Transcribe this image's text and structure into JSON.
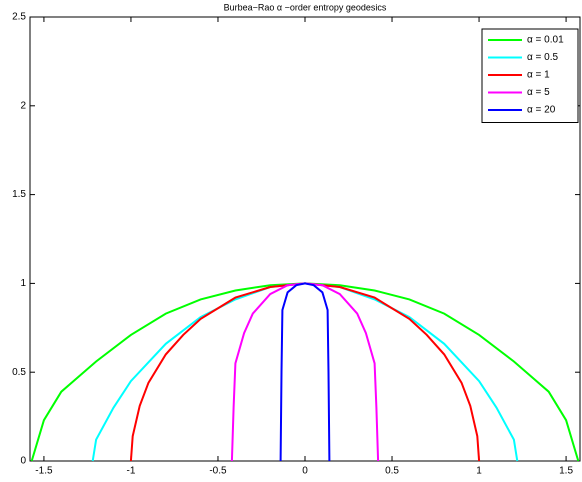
{
  "chart_data": {
    "type": "line",
    "title": "Burbea−Rao α −order entropy geodesics",
    "xlim": [
      -1.58,
      1.58
    ],
    "xticks": [
      -1.5,
      -1,
      -0.5,
      0,
      0.5,
      1,
      1.5
    ],
    "ylim": [
      0,
      2.5
    ],
    "yticks": [
      0,
      0.5,
      1,
      1.5,
      2,
      2.5
    ],
    "grid": false,
    "legend": "top-right",
    "series": [
      {
        "name": "α = 0.01",
        "color": "#00ff00",
        "x": [
          -1.57,
          -1.5,
          -1.4,
          -1.2,
          -1.0,
          -0.8,
          -0.6,
          -0.4,
          -0.2,
          0,
          0.2,
          0.4,
          0.6,
          0.8,
          1.0,
          1.2,
          1.4,
          1.5,
          1.57
        ],
        "values": [
          0,
          0.23,
          0.39,
          0.56,
          0.71,
          0.83,
          0.91,
          0.96,
          0.99,
          1,
          0.99,
          0.96,
          0.91,
          0.83,
          0.71,
          0.56,
          0.39,
          0.23,
          0
        ]
      },
      {
        "name": "α = 0.5",
        "color": "#00ffff",
        "x": [
          -1.22,
          -1.2,
          -1.1,
          -1.0,
          -0.8,
          -0.6,
          -0.4,
          -0.2,
          0,
          0.2,
          0.4,
          0.6,
          0.8,
          1.0,
          1.1,
          1.2,
          1.22
        ],
        "values": [
          0,
          0.12,
          0.3,
          0.45,
          0.66,
          0.81,
          0.91,
          0.98,
          1,
          0.98,
          0.91,
          0.81,
          0.66,
          0.45,
          0.3,
          0.12,
          0
        ]
      },
      {
        "name": "α = 1",
        "color": "#ff0000",
        "x": [
          -1.0,
          -0.99,
          -0.95,
          -0.9,
          -0.8,
          -0.7,
          -0.6,
          -0.4,
          -0.2,
          0,
          0.2,
          0.4,
          0.6,
          0.7,
          0.8,
          0.9,
          0.95,
          0.99,
          1.0
        ],
        "values": [
          0,
          0.14,
          0.31,
          0.44,
          0.6,
          0.71,
          0.8,
          0.92,
          0.98,
          1,
          0.98,
          0.92,
          0.8,
          0.71,
          0.6,
          0.44,
          0.31,
          0.14,
          0
        ]
      },
      {
        "name": "α = 5",
        "color": "#ff00ff",
        "x": [
          -0.42,
          -0.41,
          -0.4,
          -0.35,
          -0.3,
          -0.2,
          -0.1,
          0,
          0.1,
          0.2,
          0.3,
          0.35,
          0.4,
          0.41,
          0.42
        ],
        "values": [
          0,
          0.3,
          0.55,
          0.72,
          0.83,
          0.94,
          0.99,
          1,
          0.99,
          0.94,
          0.83,
          0.72,
          0.55,
          0.3,
          0
        ]
      },
      {
        "name": "α = 20",
        "color": "#0000ff",
        "x": [
          -0.14,
          -0.135,
          -0.13,
          -0.1,
          -0.05,
          0,
          0.05,
          0.1,
          0.13,
          0.135,
          0.14
        ],
        "values": [
          0,
          0.5,
          0.85,
          0.95,
          0.99,
          1,
          0.99,
          0.95,
          0.85,
          0.5,
          0
        ]
      }
    ]
  }
}
